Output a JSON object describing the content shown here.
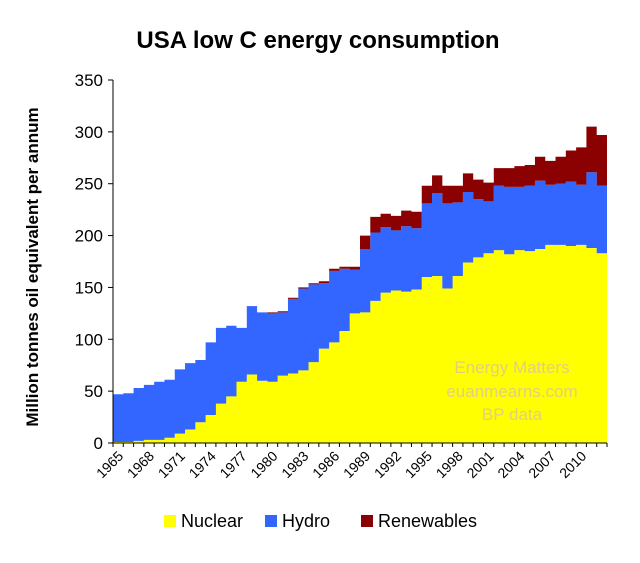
{
  "chart_data": {
    "type": "area",
    "stacked": true,
    "title": "USA low C energy consumption",
    "ylabel": "Million tonnes oil equivalent per annum",
    "xlabel": "",
    "ylim": [
      0,
      350
    ],
    "yticks": [
      0,
      50,
      100,
      150,
      200,
      250,
      300,
      350
    ],
    "xtick_labels": [
      "1965",
      "1968",
      "1971",
      "1974",
      "1977",
      "1980",
      "1983",
      "1986",
      "1989",
      "1992",
      "1995",
      "1998",
      "2001",
      "2004",
      "2007",
      "2010"
    ],
    "grid": false,
    "legend": "bottom",
    "x": [
      1965,
      1966,
      1967,
      1968,
      1969,
      1970,
      1971,
      1972,
      1973,
      1974,
      1975,
      1976,
      1977,
      1978,
      1979,
      1980,
      1981,
      1982,
      1983,
      1984,
      1985,
      1986,
      1987,
      1988,
      1989,
      1990,
      1991,
      1992,
      1993,
      1994,
      1995,
      1996,
      1997,
      1998,
      1999,
      2000,
      2001,
      2002,
      2003,
      2004,
      2005,
      2006,
      2007,
      2008,
      2009,
      2010,
      2011,
      2012
    ],
    "series": [
      {
        "name": "Nuclear",
        "color": "#ffff00",
        "values": [
          1,
          1,
          2,
          3,
          3,
          5,
          9,
          13,
          20,
          27,
          38,
          45,
          59,
          66,
          60,
          59,
          65,
          67,
          70,
          78,
          91,
          97,
          108,
          125,
          126,
          137,
          145,
          147,
          146,
          148,
          160,
          161,
          149,
          161,
          174,
          179,
          183,
          186,
          182,
          186,
          185,
          187,
          191,
          191,
          190,
          191,
          188,
          183
        ]
      },
      {
        "name": "Hydro",
        "color": "#3366ff",
        "values": [
          46,
          47,
          51,
          53,
          56,
          56,
          62,
          64,
          60,
          70,
          73,
          68,
          52,
          66,
          66,
          66,
          61,
          72,
          79,
          75,
          63,
          69,
          60,
          42,
          61,
          66,
          63,
          58,
          63,
          59,
          71,
          80,
          82,
          71,
          68,
          56,
          50,
          62,
          65,
          61,
          63,
          66,
          58,
          59,
          62,
          58,
          73,
          65
        ]
      },
      {
        "name": "Renewables",
        "color": "#8b0000",
        "values": [
          0,
          0,
          0,
          0,
          0,
          0,
          0,
          0,
          0,
          0,
          0,
          0,
          0,
          0,
          0,
          1,
          1,
          1,
          1,
          1,
          2,
          2,
          2,
          3,
          13,
          15,
          13,
          14,
          15,
          16,
          17,
          17,
          17,
          16,
          18,
          19,
          18,
          17,
          18,
          20,
          20,
          23,
          23,
          26,
          30,
          36,
          44,
          49
        ]
      }
    ],
    "annotations": [
      "Energy Matters",
      "euanmearns.com",
      "BP data"
    ],
    "annotation_color": "#e2cf7c"
  }
}
